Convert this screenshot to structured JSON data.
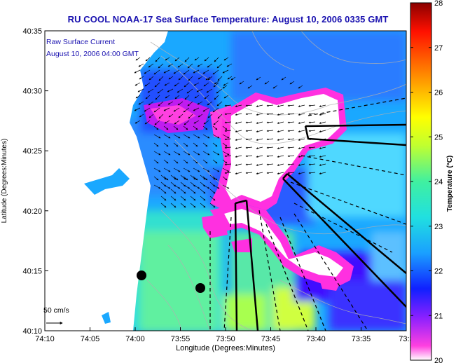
{
  "title": "RU COOL  NOAA-17  Sea Surface Temperature:  August 10, 2006 0335 GMT",
  "overlay": {
    "line1": "Raw Surface Current",
    "line2": "August 10, 2006 04:00 GMT"
  },
  "scale_label": "50 cm/s",
  "axes": {
    "xlabel": "Longitude (Degrees:Minutes)",
    "ylabel": "Latitude (Degrees:Minutes)",
    "xticks": [
      "74:10",
      "74:05",
      "74:00",
      "73:55",
      "73:50",
      "73:45",
      "73:40",
      "73:35",
      "73:3"
    ],
    "yticks": [
      "40:35",
      "40:30",
      "40:25",
      "40:20",
      "40:15",
      "40:10"
    ]
  },
  "colorbar": {
    "label": "Temperature (°C)",
    "ticks": [
      "28",
      "27",
      "26",
      "25",
      "24",
      "23",
      "22",
      "21",
      "20"
    ],
    "min": 20,
    "max": 28
  },
  "colors": {
    "title": "#1a12b0",
    "land": "#ffffff",
    "cloud_mask": "#ffffff",
    "cloud_edge": "#ff2ad4"
  }
}
